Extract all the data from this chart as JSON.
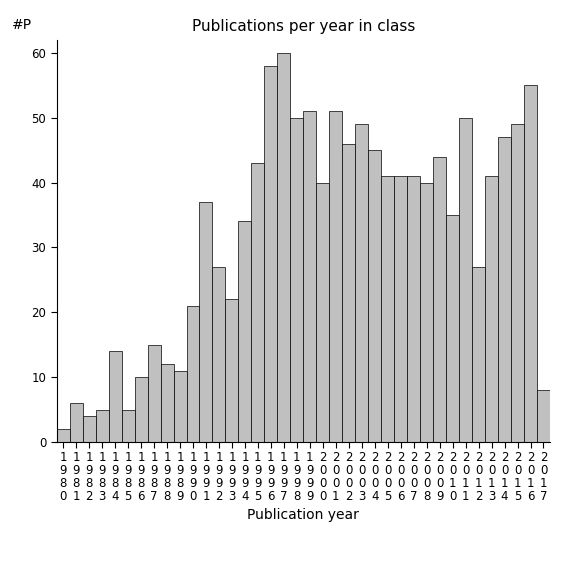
{
  "title": "Publications per year in class",
  "xlabel": "Publication year",
  "ylabel": "#P",
  "years": [
    1980,
    1981,
    1982,
    1983,
    1984,
    1985,
    1986,
    1987,
    1988,
    1989,
    1990,
    1991,
    1992,
    1993,
    1994,
    1995,
    1996,
    1997,
    1998,
    1999,
    2000,
    2001,
    2002,
    2003,
    2004,
    2005,
    2006,
    2007,
    2008,
    2009,
    2010,
    2011,
    2012,
    2013,
    2014,
    2015,
    2016,
    2017
  ],
  "values": [
    2,
    6,
    4,
    5,
    14,
    5,
    10,
    15,
    12,
    11,
    21,
    37,
    27,
    22,
    34,
    43,
    58,
    60,
    50,
    51,
    40,
    51,
    46,
    49,
    45,
    41,
    41,
    41,
    40,
    44,
    35,
    50,
    27,
    41,
    47,
    49,
    55,
    8
  ],
  "bar_color": "#c0c0c0",
  "bar_edge_color": "#000000",
  "background_color": "#ffffff",
  "ylim": [
    0,
    62
  ],
  "yticks": [
    0,
    10,
    20,
    30,
    40,
    50,
    60
  ],
  "title_fontsize": 11,
  "label_fontsize": 10,
  "tick_fontsize": 8.5
}
